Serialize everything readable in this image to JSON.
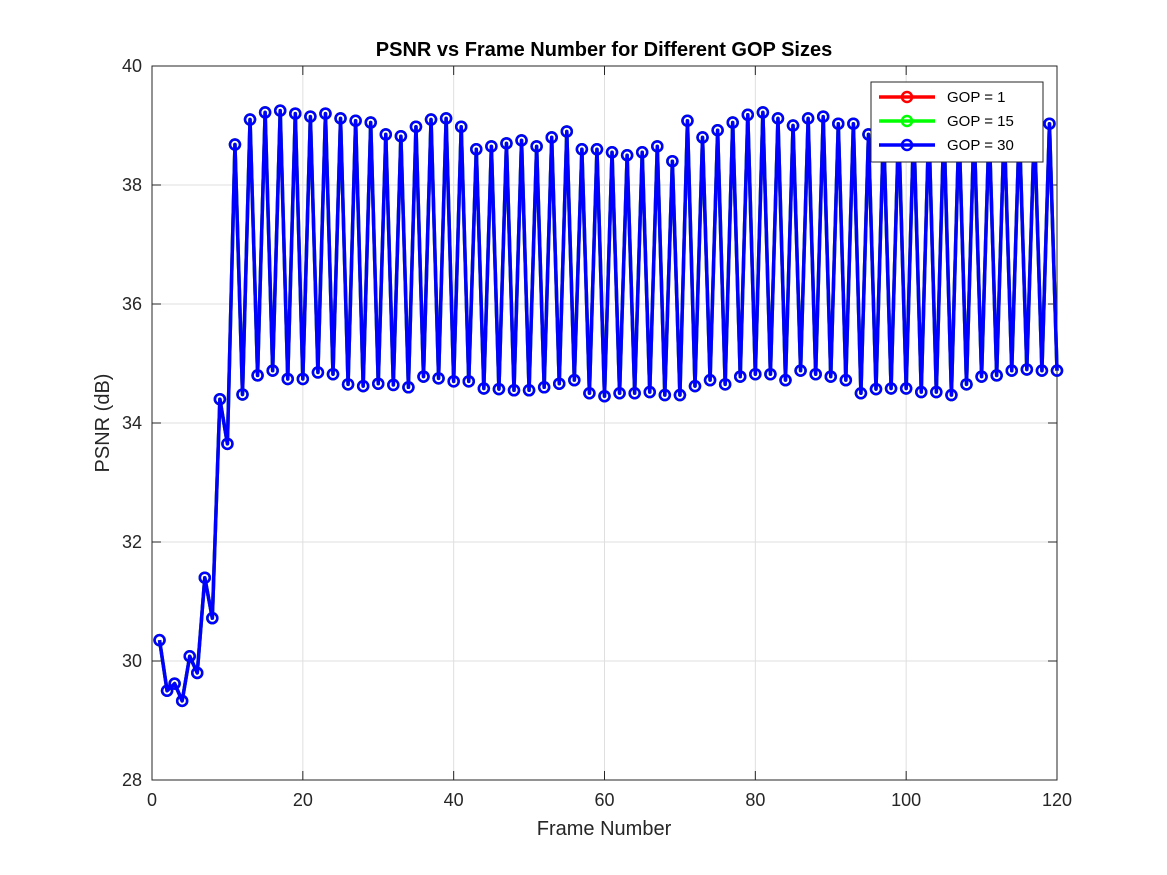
{
  "chart_data": {
    "type": "line",
    "title": "PSNR vs Frame Number for Different GOP Sizes",
    "xlabel": "Frame Number",
    "ylabel": "PSNR (dB)",
    "xlim": [
      0,
      120
    ],
    "ylim": [
      28,
      40
    ],
    "xticks": [
      0,
      20,
      40,
      60,
      80,
      100,
      120
    ],
    "yticks": [
      28,
      30,
      32,
      34,
      36,
      38,
      40
    ],
    "grid": true,
    "legend_position": "top-right",
    "marker": "circle",
    "series": [
      {
        "name": "GOP = 1",
        "color": "#ff0000",
        "x": [
          1,
          2,
          3,
          4,
          5,
          6,
          7,
          8,
          9,
          10,
          11,
          12,
          13,
          14,
          15,
          16,
          17,
          18,
          19,
          20,
          21,
          22,
          23,
          24,
          25,
          26,
          27,
          28,
          29,
          30,
          31,
          32,
          33,
          34,
          35,
          36,
          37,
          38,
          39,
          40,
          41,
          42,
          43,
          44,
          45,
          46,
          47,
          48,
          49,
          50,
          51,
          52,
          53,
          54,
          55,
          56,
          57,
          58,
          59,
          60,
          61,
          62,
          63,
          64,
          65,
          66,
          67,
          68,
          69,
          70,
          71,
          72,
          73,
          74,
          75,
          76,
          77,
          78,
          79,
          80,
          81,
          82,
          83,
          84,
          85,
          86,
          87,
          88,
          89,
          90,
          91,
          92,
          93,
          94,
          95,
          96,
          97,
          98,
          99,
          100,
          101,
          102,
          103,
          104,
          105,
          106,
          107,
          108,
          109,
          110,
          111,
          112,
          113,
          114,
          115,
          116,
          117,
          118,
          119,
          120
        ],
        "y": [
          30.35,
          29.5,
          29.62,
          29.33,
          30.08,
          29.8,
          31.4,
          30.72,
          34.4,
          33.65,
          38.68,
          34.48,
          39.1,
          34.8,
          39.22,
          34.88,
          39.25,
          34.74,
          39.2,
          34.74,
          39.15,
          34.85,
          39.2,
          34.82,
          39.12,
          34.65,
          39.08,
          34.62,
          39.05,
          34.66,
          38.85,
          34.64,
          38.82,
          34.6,
          38.98,
          34.78,
          39.1,
          34.75,
          39.12,
          34.7,
          38.98,
          34.7,
          38.6,
          34.58,
          38.65,
          34.57,
          38.7,
          34.55,
          38.75,
          34.55,
          38.65,
          34.6,
          38.8,
          34.66,
          38.9,
          34.72,
          38.6,
          34.5,
          38.6,
          34.45,
          38.55,
          34.5,
          38.5,
          34.5,
          38.55,
          34.52,
          38.65,
          34.47,
          38.4,
          34.47,
          39.08,
          34.62,
          38.8,
          34.72,
          38.92,
          34.65,
          39.05,
          34.78,
          39.18,
          34.82,
          39.22,
          34.82,
          39.12,
          34.72,
          39.0,
          34.88,
          39.12,
          34.82,
          39.15,
          34.78,
          39.03,
          34.72,
          39.03,
          34.5,
          38.85,
          34.57,
          38.95,
          34.58,
          39.0,
          34.58,
          38.98,
          34.52,
          39.0,
          34.52,
          39.0,
          34.47,
          38.98,
          34.65,
          38.98,
          34.78,
          38.98,
          34.8,
          38.98,
          34.88,
          38.98,
          34.9,
          38.98,
          34.88,
          39.03,
          34.88
        ]
      },
      {
        "name": "GOP = 15",
        "color": "#00ff00",
        "x": [
          1,
          2,
          3,
          4,
          5,
          6,
          7,
          8,
          9,
          10,
          11,
          12,
          13,
          14,
          15,
          16,
          17,
          18,
          19,
          20,
          21,
          22,
          23,
          24,
          25,
          26,
          27,
          28,
          29,
          30,
          31,
          32,
          33,
          34,
          35,
          36,
          37,
          38,
          39,
          40,
          41,
          42,
          43,
          44,
          45,
          46,
          47,
          48,
          49,
          50,
          51,
          52,
          53,
          54,
          55,
          56,
          57,
          58,
          59,
          60,
          61,
          62,
          63,
          64,
          65,
          66,
          67,
          68,
          69,
          70,
          71,
          72,
          73,
          74,
          75,
          76,
          77,
          78,
          79,
          80,
          81,
          82,
          83,
          84,
          85,
          86,
          87,
          88,
          89,
          90,
          91,
          92,
          93,
          94,
          95,
          96,
          97,
          98,
          99,
          100,
          101,
          102,
          103,
          104,
          105,
          106,
          107,
          108,
          109,
          110,
          111,
          112,
          113,
          114,
          115,
          116,
          117,
          118,
          119,
          120
        ],
        "y": [
          30.35,
          29.5,
          29.62,
          29.33,
          30.08,
          29.8,
          31.4,
          30.72,
          34.4,
          33.65,
          38.68,
          34.48,
          39.1,
          34.8,
          39.22,
          34.88,
          39.25,
          34.74,
          39.2,
          34.74,
          39.15,
          34.85,
          39.2,
          34.82,
          39.12,
          34.65,
          39.08,
          34.62,
          39.05,
          34.66,
          38.85,
          34.64,
          38.82,
          34.6,
          38.98,
          34.78,
          39.1,
          34.75,
          39.12,
          34.7,
          38.98,
          34.7,
          38.6,
          34.58,
          38.65,
          34.57,
          38.7,
          34.55,
          38.75,
          34.55,
          38.65,
          34.6,
          38.8,
          34.66,
          38.9,
          34.72,
          38.6,
          34.5,
          38.6,
          34.45,
          38.55,
          34.5,
          38.5,
          34.5,
          38.55,
          34.52,
          38.65,
          34.47,
          38.4,
          34.47,
          39.08,
          34.62,
          38.8,
          34.72,
          38.92,
          34.65,
          39.05,
          34.78,
          39.18,
          34.82,
          39.22,
          34.82,
          39.12,
          34.72,
          39.0,
          34.88,
          39.12,
          34.82,
          39.15,
          34.78,
          39.03,
          34.72,
          39.03,
          34.5,
          38.85,
          34.57,
          38.95,
          34.58,
          39.0,
          34.58,
          38.98,
          34.52,
          39.0,
          34.52,
          39.0,
          34.47,
          38.98,
          34.65,
          38.98,
          34.78,
          38.98,
          34.8,
          38.98,
          34.88,
          38.98,
          34.9,
          38.98,
          34.88,
          39.03,
          34.88
        ]
      },
      {
        "name": "GOP = 30",
        "color": "#0000ff",
        "x": [
          1,
          2,
          3,
          4,
          5,
          6,
          7,
          8,
          9,
          10,
          11,
          12,
          13,
          14,
          15,
          16,
          17,
          18,
          19,
          20,
          21,
          22,
          23,
          24,
          25,
          26,
          27,
          28,
          29,
          30,
          31,
          32,
          33,
          34,
          35,
          36,
          37,
          38,
          39,
          40,
          41,
          42,
          43,
          44,
          45,
          46,
          47,
          48,
          49,
          50,
          51,
          52,
          53,
          54,
          55,
          56,
          57,
          58,
          59,
          60,
          61,
          62,
          63,
          64,
          65,
          66,
          67,
          68,
          69,
          70,
          71,
          72,
          73,
          74,
          75,
          76,
          77,
          78,
          79,
          80,
          81,
          82,
          83,
          84,
          85,
          86,
          87,
          88,
          89,
          90,
          91,
          92,
          93,
          94,
          95,
          96,
          97,
          98,
          99,
          100,
          101,
          102,
          103,
          104,
          105,
          106,
          107,
          108,
          109,
          110,
          111,
          112,
          113,
          114,
          115,
          116,
          117,
          118,
          119,
          120
        ],
        "y": [
          30.35,
          29.5,
          29.62,
          29.33,
          30.08,
          29.8,
          31.4,
          30.72,
          34.4,
          33.65,
          38.68,
          34.48,
          39.1,
          34.8,
          39.22,
          34.88,
          39.25,
          34.74,
          39.2,
          34.74,
          39.15,
          34.85,
          39.2,
          34.82,
          39.12,
          34.65,
          39.08,
          34.62,
          39.05,
          34.66,
          38.85,
          34.64,
          38.82,
          34.6,
          38.98,
          34.78,
          39.1,
          34.75,
          39.12,
          34.7,
          38.98,
          34.7,
          38.6,
          34.58,
          38.65,
          34.57,
          38.7,
          34.55,
          38.75,
          34.55,
          38.65,
          34.6,
          38.8,
          34.66,
          38.9,
          34.72,
          38.6,
          34.5,
          38.6,
          34.45,
          38.55,
          34.5,
          38.5,
          34.5,
          38.55,
          34.52,
          38.65,
          34.47,
          38.4,
          34.47,
          39.08,
          34.62,
          38.8,
          34.72,
          38.92,
          34.65,
          39.05,
          34.78,
          39.18,
          34.82,
          39.22,
          34.82,
          39.12,
          34.72,
          39.0,
          34.88,
          39.12,
          34.82,
          39.15,
          34.78,
          39.03,
          34.72,
          39.03,
          34.5,
          38.85,
          34.57,
          38.95,
          34.58,
          39.0,
          34.58,
          38.98,
          34.52,
          39.0,
          34.52,
          39.0,
          34.47,
          38.98,
          34.65,
          38.98,
          34.78,
          38.98,
          34.8,
          38.98,
          34.88,
          38.98,
          34.9,
          38.98,
          34.88,
          39.03,
          34.88
        ]
      }
    ]
  }
}
